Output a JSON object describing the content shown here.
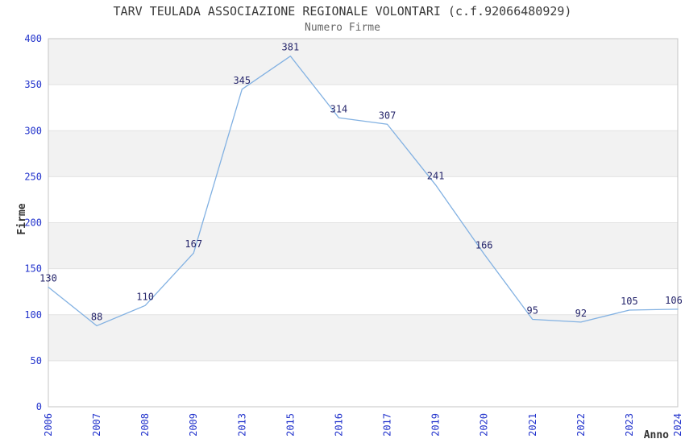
{
  "chart_data": {
    "type": "line",
    "title": "TARV TEULADA ASSOCIAZIONE REGIONALE VOLONTARI (c.f.92066480929)",
    "subtitle": "Numero Firme",
    "xlabel": "Anno",
    "ylabel": "Firme",
    "categories": [
      "2006",
      "2007",
      "2008",
      "2009",
      "2013",
      "2015",
      "2016",
      "2017",
      "2019",
      "2020",
      "2021",
      "2022",
      "2023",
      "2024"
    ],
    "values": [
      130,
      88,
      110,
      167,
      345,
      381,
      314,
      307,
      241,
      166,
      95,
      92,
      105,
      106
    ],
    "ylim": [
      0,
      400
    ],
    "ytick_step": 50,
    "ytick_labels": [
      "0",
      "50",
      "100",
      "150",
      "200",
      "250",
      "300",
      "350",
      "400"
    ],
    "grid": "horizontal-bands-alternating",
    "legend": "none",
    "colors": {
      "line": "#82b1e2",
      "tick_label": "#2233cc",
      "data_label": "#25256b",
      "band_gray": "#f2f2f2",
      "band_white": "#ffffff",
      "gridline": "#e2e2e2",
      "plot_border": "#c5c5c5",
      "title": "#3a3a3a",
      "subtitle": "#666666",
      "axis_label": "#333333"
    }
  }
}
